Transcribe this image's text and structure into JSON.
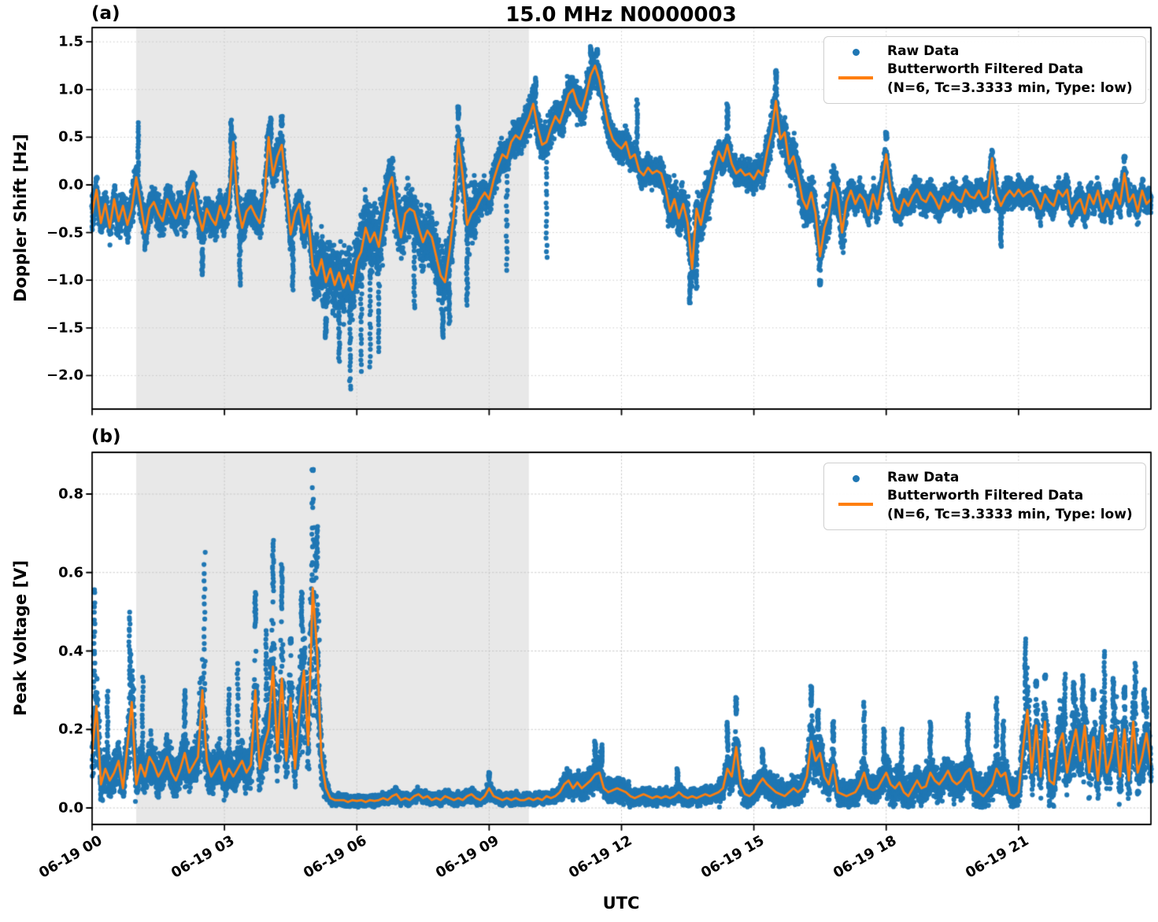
{
  "figure": {
    "title": "15.0 MHz N0000003",
    "xlabel": "UTC",
    "panel_a_tag": "(a)",
    "panel_b_tag": "(b)",
    "legend": {
      "raw_label": "Raw Data",
      "filtered_label": "Butterworth Filtered Data",
      "filtered_sublabel": "(N=6, Tc=3.3333 min, Type: low)"
    },
    "colors": {
      "raw": "#1f77b4",
      "filtered": "#ff7f0e",
      "shade": "#e8e8e8",
      "grid": "#c8c8c8",
      "spine": "#000000"
    }
  },
  "chart_data": [
    {
      "type": "scatter",
      "panel": "a",
      "panel_label": "(a)",
      "ylabel": "Doppler Shift [Hz]",
      "ylim": [
        -2.35,
        1.65
      ],
      "yticks": {
        "values": [
          1.5,
          1.0,
          0.5,
          0.0,
          -0.5,
          -1.0,
          -1.5,
          -2.0
        ],
        "labels": [
          "1.5",
          "1.0",
          "0.5",
          "0.0",
          "−0.5",
          "−1.0",
          "−1.5",
          "−2.0"
        ]
      },
      "x_axis": {
        "label": "UTC",
        "range_hours": [
          0,
          24
        ],
        "tick_values_hours": [
          0,
          3,
          6,
          9,
          12,
          15,
          18,
          21
        ],
        "tick_labels": [
          "06-19 00",
          "06-19 03",
          "06-19 06",
          "06-19 09",
          "06-19 12",
          "06-19 15",
          "06-19 18",
          "06-19 21"
        ]
      },
      "grid": true,
      "legend_position": "upper right",
      "shaded_region_hours": {
        "start": 1.0,
        "end": 9.9
      },
      "series": [
        {
          "name": "Raw Data",
          "type": "scatter",
          "color": "#1f77b4"
        },
        {
          "name": "Butterworth Filtered Data (N=6, Tc=3.3333 min, Type: low)",
          "type": "line",
          "color": "#ff7f0e"
        }
      ],
      "filtered": {
        "t0_hours": 0,
        "dt_hours": 0.1,
        "values": [
          -0.3,
          -0.05,
          -0.4,
          -0.2,
          -0.45,
          -0.15,
          -0.38,
          -0.22,
          -0.42,
          -0.25,
          0.08,
          -0.2,
          -0.5,
          -0.25,
          -0.18,
          -0.3,
          -0.38,
          -0.15,
          -0.25,
          -0.35,
          -0.2,
          -0.35,
          -0.1,
          0.02,
          -0.3,
          -0.48,
          -0.25,
          -0.35,
          -0.42,
          -0.22,
          -0.35,
          -0.2,
          0.45,
          -0.2,
          -0.45,
          -0.28,
          -0.22,
          -0.32,
          -0.4,
          -0.18,
          0.5,
          0.1,
          0.3,
          0.42,
          -0.05,
          -0.52,
          -0.3,
          -0.2,
          -0.5,
          -0.32,
          -0.85,
          -0.95,
          -0.78,
          -1.02,
          -0.88,
          -1.05,
          -0.92,
          -1.08,
          -0.95,
          -1.1,
          -0.8,
          -0.7,
          -0.45,
          -0.6,
          -0.5,
          -0.65,
          -0.35,
          -0.05,
          0.08,
          -0.3,
          -0.55,
          -0.3,
          -0.25,
          -0.28,
          -0.45,
          -0.6,
          -0.48,
          -0.55,
          -0.75,
          -0.95,
          -1.02,
          -0.7,
          -0.3,
          0.48,
          0.1,
          -0.42,
          -0.3,
          -0.25,
          -0.15,
          -0.08,
          -0.15,
          0.05,
          0.2,
          0.32,
          0.28,
          0.45,
          0.52,
          0.48,
          0.6,
          0.7,
          0.85,
          0.6,
          0.42,
          0.45,
          0.6,
          0.72,
          0.65,
          0.8,
          0.95,
          1.0,
          0.85,
          0.78,
          0.95,
          1.15,
          1.25,
          1.1,
          0.85,
          0.62,
          0.48,
          0.42,
          0.38,
          0.45,
          0.28,
          0.32,
          0.15,
          0.1,
          0.18,
          0.12,
          0.15,
          0.12,
          -0.05,
          -0.28,
          -0.15,
          -0.35,
          -0.2,
          -0.4,
          -0.88,
          -0.25,
          -0.42,
          -0.18,
          -0.05,
          0.18,
          0.35,
          0.25,
          0.42,
          0.22,
          0.12,
          0.16,
          0.1,
          0.12,
          0.06,
          0.15,
          0.1,
          0.35,
          0.55,
          0.88,
          0.48,
          0.55,
          0.22,
          0.3,
          0.1,
          -0.15,
          -0.25,
          -0.08,
          -0.3,
          -0.75,
          -0.45,
          -0.3,
          0.02,
          -0.1,
          -0.5,
          -0.18,
          -0.06,
          -0.2,
          -0.1,
          -0.16,
          -0.32,
          -0.1,
          -0.25,
          0.0,
          0.32,
          -0.05,
          -0.25,
          -0.3,
          -0.15,
          -0.22,
          -0.12,
          -0.05,
          -0.15,
          -0.18,
          -0.08,
          -0.15,
          -0.25,
          -0.12,
          -0.18,
          -0.08,
          -0.15,
          -0.18,
          -0.05,
          -0.12,
          -0.14,
          -0.06,
          -0.15,
          -0.12,
          0.28,
          -0.1,
          -0.22,
          -0.12,
          -0.06,
          -0.12,
          -0.05,
          -0.12,
          -0.08,
          -0.06,
          -0.15,
          -0.25,
          -0.1,
          -0.18,
          -0.22,
          -0.06,
          -0.12,
          -0.05,
          -0.3,
          -0.2,
          -0.15,
          -0.3,
          -0.1,
          -0.2,
          -0.06,
          -0.28,
          -0.15,
          -0.25,
          -0.08,
          -0.2,
          0.12,
          -0.18,
          -0.1,
          -0.28,
          -0.06,
          -0.2,
          -0.15
        ]
      },
      "raw_scatter": {
        "spread_segments": [
          [
            0,
            5,
            0.22
          ],
          [
            5,
            6.6,
            0.42
          ],
          [
            6.6,
            7.6,
            0.33
          ],
          [
            7.6,
            8.7,
            0.38
          ],
          [
            8.7,
            12.2,
            0.22
          ],
          [
            12.2,
            13.0,
            0.18
          ],
          [
            13.0,
            14.0,
            0.32
          ],
          [
            14.0,
            15.2,
            0.18
          ],
          [
            15.2,
            16.0,
            0.25
          ],
          [
            16.0,
            17.1,
            0.28
          ],
          [
            17.1,
            18.0,
            0.18
          ],
          [
            18.0,
            24.0,
            0.17
          ]
        ],
        "outlier_columns_high": [
          [
            1.05,
            0.65
          ],
          [
            3.15,
            0.68
          ],
          [
            4.05,
            0.7
          ],
          [
            4.3,
            0.72
          ],
          [
            8.3,
            0.72
          ],
          [
            10.05,
            1.12
          ],
          [
            11.3,
            1.45
          ],
          [
            11.45,
            1.42
          ],
          [
            12.35,
            0.88
          ],
          [
            14.4,
            0.85
          ],
          [
            15.5,
            1.2
          ],
          [
            18.0,
            0.55
          ],
          [
            23.4,
            0.3
          ]
        ],
        "outlier_columns_low": [
          [
            2.5,
            -0.95
          ],
          [
            3.35,
            -1.05
          ],
          [
            4.55,
            -1.1
          ],
          [
            5.3,
            -1.6
          ],
          [
            5.6,
            -1.85
          ],
          [
            5.85,
            -2.15
          ],
          [
            6.1,
            -1.95
          ],
          [
            6.3,
            -1.9
          ],
          [
            6.5,
            -1.75
          ],
          [
            7.3,
            -1.3
          ],
          [
            7.95,
            -1.6
          ],
          [
            8.1,
            -1.45
          ],
          [
            8.5,
            -1.25
          ],
          [
            9.4,
            -0.9
          ],
          [
            10.3,
            -0.75
          ],
          [
            13.55,
            -1.25
          ],
          [
            13.7,
            -1.1
          ],
          [
            16.5,
            -1.05
          ],
          [
            20.6,
            -0.65
          ]
        ]
      }
    },
    {
      "type": "scatter",
      "panel": "b",
      "panel_label": "(b)",
      "ylabel": "Peak Voltage [V]",
      "ylim": [
        -0.04,
        0.9
      ],
      "yticks": {
        "values": [
          0.8,
          0.6,
          0.4,
          0.2,
          0.0
        ],
        "labels": [
          "0.8",
          "0.6",
          "0.4",
          "0.2",
          "0.0"
        ]
      },
      "x_axis": {
        "label": "UTC",
        "range_hours": [
          0,
          24
        ],
        "tick_values_hours": [
          0,
          3,
          6,
          9,
          12,
          15,
          18,
          21
        ],
        "tick_labels": [
          "06-19 00",
          "06-19 03",
          "06-19 06",
          "06-19 09",
          "06-19 12",
          "06-19 15",
          "06-19 18",
          "06-19 21"
        ]
      },
      "grid": true,
      "legend_position": "upper right",
      "shaded_region_hours": {
        "start": 1.0,
        "end": 9.9
      },
      "series": [
        {
          "name": "Raw Data",
          "type": "scatter",
          "color": "#1f77b4"
        },
        {
          "name": "Butterworth Filtered Data (N=6, Tc=3.3333 min, Type: low)",
          "type": "line",
          "color": "#ff7f0e"
        }
      ],
      "filtered": {
        "t0_hours": 0,
        "dt_hours": 0.1,
        "values": [
          0.14,
          0.26,
          0.06,
          0.1,
          0.07,
          0.09,
          0.12,
          0.05,
          0.16,
          0.27,
          0.06,
          0.11,
          0.08,
          0.13,
          0.11,
          0.08,
          0.1,
          0.13,
          0.09,
          0.07,
          0.1,
          0.14,
          0.09,
          0.11,
          0.13,
          0.3,
          0.12,
          0.08,
          0.1,
          0.12,
          0.07,
          0.1,
          0.08,
          0.1,
          0.12,
          0.09,
          0.11,
          0.3,
          0.1,
          0.16,
          0.2,
          0.36,
          0.14,
          0.33,
          0.12,
          0.28,
          0.1,
          0.25,
          0.35,
          0.16,
          0.56,
          0.4,
          0.12,
          0.05,
          0.025,
          0.02,
          0.02,
          0.02,
          0.015,
          0.02,
          0.018,
          0.02,
          0.015,
          0.02,
          0.018,
          0.02,
          0.025,
          0.02,
          0.03,
          0.035,
          0.02,
          0.025,
          0.02,
          0.03,
          0.035,
          0.025,
          0.03,
          0.02,
          0.025,
          0.02,
          0.03,
          0.025,
          0.02,
          0.025,
          0.02,
          0.03,
          0.035,
          0.025,
          0.02,
          0.03,
          0.05,
          0.03,
          0.025,
          0.02,
          0.025,
          0.02,
          0.025,
          0.02,
          0.02,
          0.025,
          0.02,
          0.025,
          0.02,
          0.03,
          0.025,
          0.03,
          0.04,
          0.06,
          0.07,
          0.05,
          0.065,
          0.05,
          0.06,
          0.07,
          0.085,
          0.09,
          0.05,
          0.04,
          0.045,
          0.05,
          0.045,
          0.04,
          0.03,
          0.025,
          0.03,
          0.035,
          0.03,
          0.025,
          0.03,
          0.025,
          0.03,
          0.025,
          0.03,
          0.04,
          0.03,
          0.025,
          0.03,
          0.025,
          0.03,
          0.035,
          0.03,
          0.035,
          0.04,
          0.05,
          0.1,
          0.08,
          0.155,
          0.06,
          0.035,
          0.03,
          0.04,
          0.06,
          0.075,
          0.06,
          0.05,
          0.04,
          0.035,
          0.03,
          0.04,
          0.05,
          0.04,
          0.05,
          0.08,
          0.17,
          0.12,
          0.14,
          0.08,
          0.06,
          0.11,
          0.04,
          0.035,
          0.03,
          0.035,
          0.04,
          0.06,
          0.09,
          0.05,
          0.045,
          0.05,
          0.07,
          0.09,
          0.06,
          0.05,
          0.065,
          0.04,
          0.03,
          0.05,
          0.07,
          0.05,
          0.055,
          0.09,
          0.07,
          0.06,
          0.075,
          0.095,
          0.07,
          0.06,
          0.07,
          0.09,
          0.1,
          0.045,
          0.04,
          0.03,
          0.045,
          0.06,
          0.1,
          0.08,
          0.09,
          0.035,
          0.03,
          0.04,
          0.15,
          0.25,
          0.09,
          0.21,
          0.08,
          0.22,
          0.07,
          0.06,
          0.16,
          0.19,
          0.09,
          0.15,
          0.2,
          0.12,
          0.21,
          0.09,
          0.18,
          0.07,
          0.21,
          0.09,
          0.13,
          0.2,
          0.08,
          0.2,
          0.07,
          0.22,
          0.09,
          0.13,
          0.19,
          0.11
        ]
      },
      "raw_scatter": {
        "spread_segments": [
          [
            0,
            5.3,
            0.06
          ],
          [
            5.3,
            10.6,
            0.018
          ],
          [
            10.6,
            12.2,
            0.035
          ],
          [
            12.2,
            14.2,
            0.025
          ],
          [
            14.2,
            18.0,
            0.04
          ],
          [
            18.0,
            21.05,
            0.055
          ],
          [
            21.05,
            24.0,
            0.08
          ]
        ],
        "outlier_columns_high": [
          [
            0.05,
            0.56
          ],
          [
            0.35,
            0.3
          ],
          [
            0.85,
            0.5
          ],
          [
            1.15,
            0.33
          ],
          [
            2.1,
            0.3
          ],
          [
            2.55,
            0.64
          ],
          [
            3.1,
            0.3
          ],
          [
            3.3,
            0.37
          ],
          [
            3.7,
            0.55
          ],
          [
            3.95,
            0.45
          ],
          [
            4.1,
            0.68
          ],
          [
            4.3,
            0.62
          ],
          [
            4.5,
            0.42
          ],
          [
            4.75,
            0.55
          ],
          [
            5.0,
            0.86
          ],
          [
            5.1,
            0.72
          ],
          [
            9.0,
            0.09
          ],
          [
            11.4,
            0.17
          ],
          [
            11.55,
            0.16
          ],
          [
            13.27,
            0.1
          ],
          [
            14.4,
            0.22
          ],
          [
            14.6,
            0.28
          ],
          [
            15.2,
            0.15
          ],
          [
            16.3,
            0.31
          ],
          [
            16.45,
            0.25
          ],
          [
            16.8,
            0.22
          ],
          [
            17.5,
            0.27
          ],
          [
            17.95,
            0.2
          ],
          [
            18.35,
            0.2
          ],
          [
            19.0,
            0.22
          ],
          [
            19.85,
            0.24
          ],
          [
            20.5,
            0.28
          ],
          [
            20.65,
            0.22
          ],
          [
            21.15,
            0.43
          ],
          [
            21.4,
            0.31
          ],
          [
            21.6,
            0.33
          ],
          [
            22.05,
            0.34
          ],
          [
            22.25,
            0.32
          ],
          [
            22.45,
            0.34
          ],
          [
            22.7,
            0.3
          ],
          [
            22.95,
            0.4
          ],
          [
            23.15,
            0.33
          ],
          [
            23.4,
            0.28
          ],
          [
            23.65,
            0.37
          ],
          [
            23.85,
            0.3
          ]
        ],
        "outlier_columns_low": []
      }
    }
  ]
}
